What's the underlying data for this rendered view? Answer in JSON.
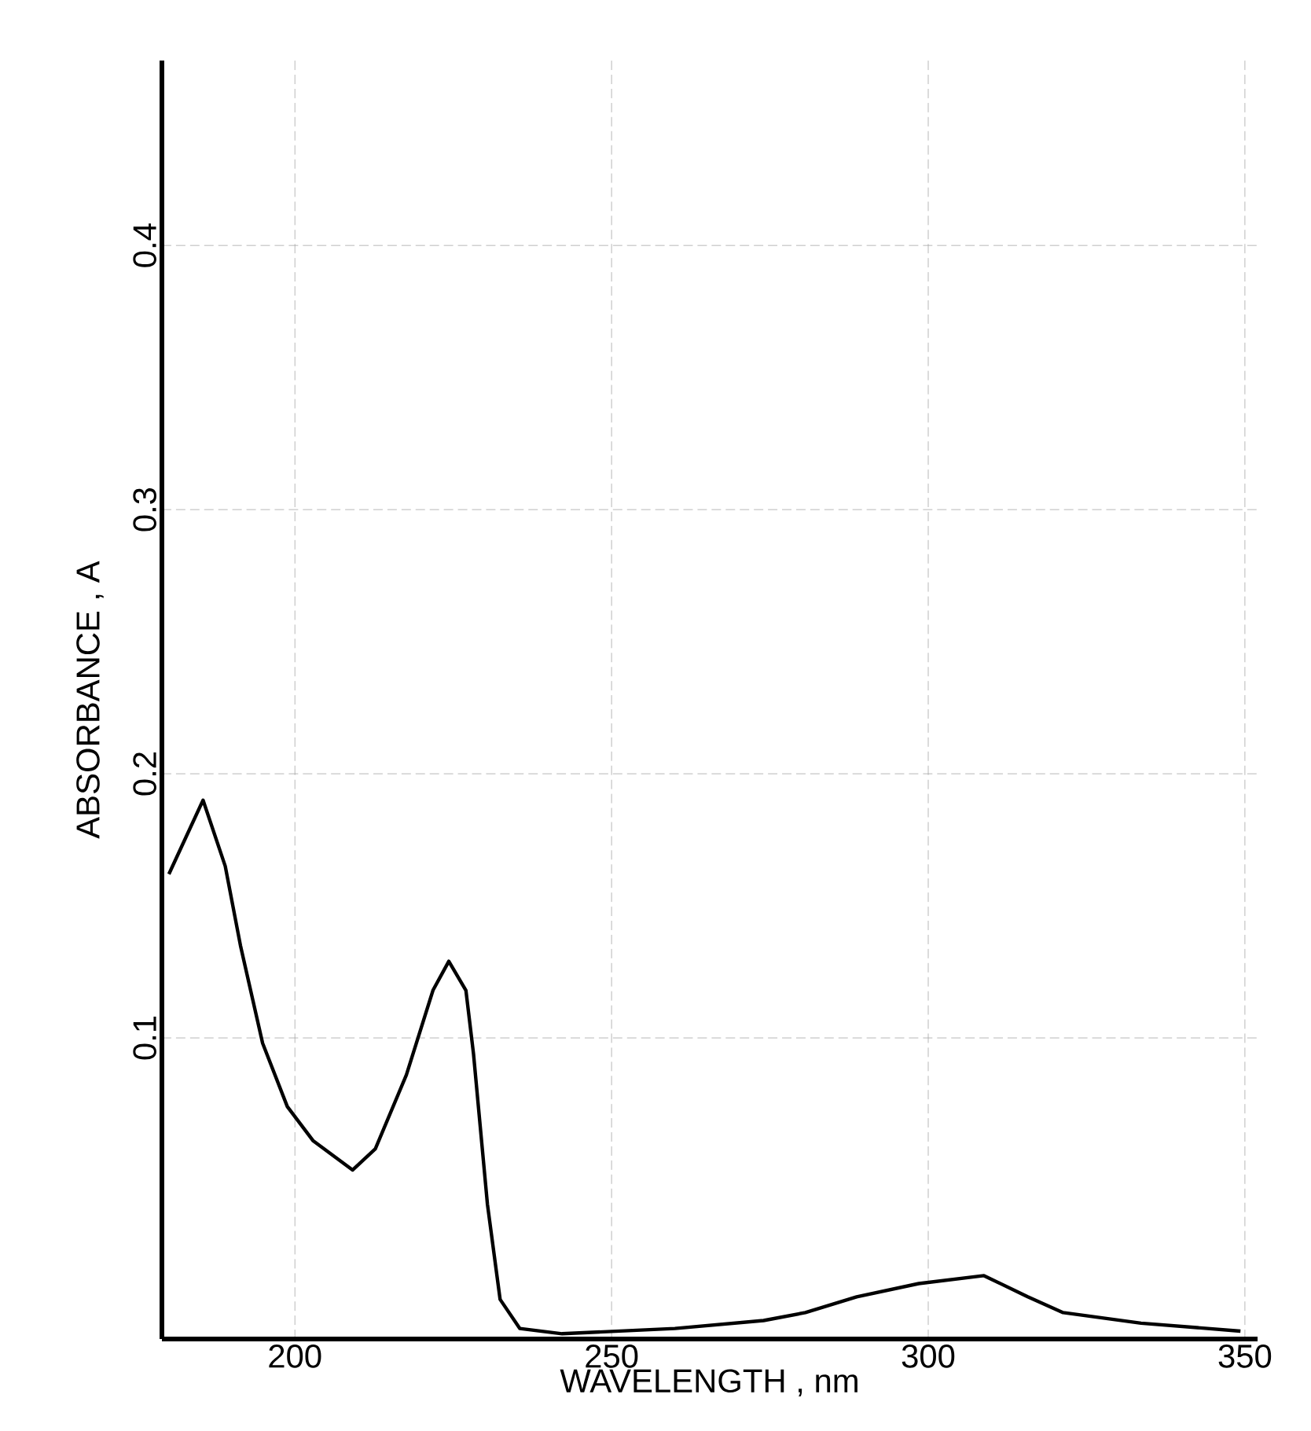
{
  "chart_data": {
    "type": "line",
    "xlabel": "WAVELENGTH , nm",
    "ylabel": "ABSORBANCE , A",
    "xlim": [
      179,
      352
    ],
    "ylim": [
      -0.014,
      0.47
    ],
    "xticks": [
      200,
      250,
      300,
      350
    ],
    "yticks": [
      0.1,
      0.2,
      0.3,
      0.4
    ],
    "grid": true,
    "marker": "none",
    "line_style": "solid",
    "series": [
      {
        "color": "#000000",
        "x": [
          180.1,
          185.5,
          189,
          191.4,
          194.9,
          198.8,
          202.9,
          209.1,
          212.7,
          217.6,
          221.8,
          224.3,
          227.0,
          228.2,
          230.4,
          232.4,
          235.5,
          242.2,
          260,
          274,
          280.6,
          288.7,
          298.5,
          308.8,
          315.7,
          321.3,
          333.6,
          349.3
        ],
        "values": [
          0.162,
          0.19,
          0.165,
          0.135,
          0.098,
          0.074,
          0.061,
          0.05,
          0.058,
          0.086,
          0.118,
          0.129,
          0.118,
          0.094,
          0.037,
          0.001,
          -0.01,
          -0.012,
          -0.01,
          -0.007,
          -0.004,
          0.002,
          0.007,
          0.01,
          0.002,
          -0.004,
          -0.008,
          -0.011
        ]
      }
    ]
  }
}
